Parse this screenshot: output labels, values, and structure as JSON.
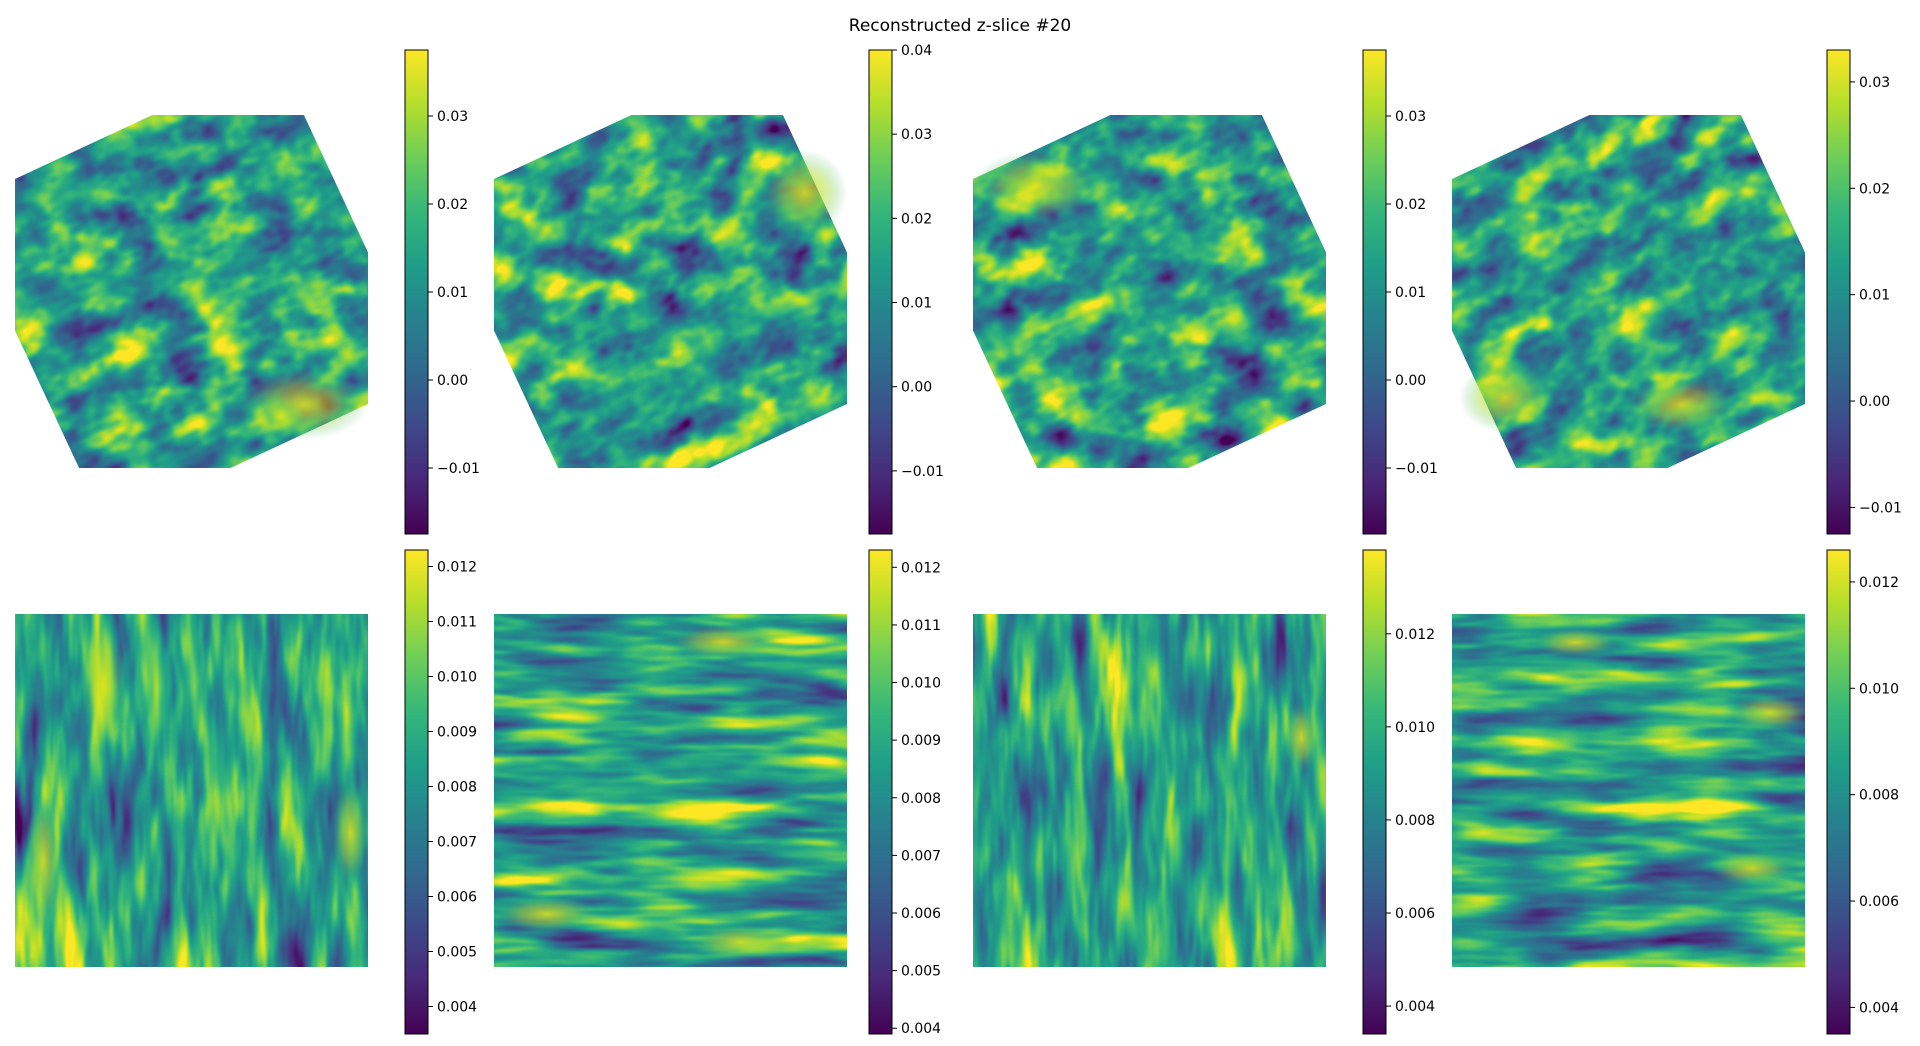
{
  "title": "Reconstructed z-slice #20",
  "colormap": "viridis",
  "chart_data": [
    {
      "type": "heatmap",
      "row": 0,
      "col": 0,
      "axes": "off",
      "colorbar": {
        "range": [
          -0.0175,
          0.0375
        ],
        "ticks": [
          -0.01,
          0.0,
          0.01,
          0.02,
          0.03
        ],
        "tick_labels": [
          "−0.01",
          "0.00",
          "0.01",
          "0.02",
          "0.03"
        ]
      },
      "pattern": "diagonal streaks, bright (yellow) blob at bottom-right"
    },
    {
      "type": "heatmap",
      "row": 0,
      "col": 1,
      "axes": "off",
      "colorbar": {
        "range": [
          -0.0175,
          0.04
        ],
        "ticks": [
          -0.01,
          0.0,
          0.01,
          0.02,
          0.03,
          0.04
        ],
        "tick_labels": [
          "−0.01",
          "0.00",
          "0.01",
          "0.02",
          "0.03",
          "0.04"
        ]
      },
      "pattern": "diagonal streaks, bright blob at top-right"
    },
    {
      "type": "heatmap",
      "row": 0,
      "col": 2,
      "axes": "off",
      "colorbar": {
        "range": [
          -0.0175,
          0.0375
        ],
        "ticks": [
          -0.01,
          0.0,
          0.01,
          0.02,
          0.03
        ],
        "tick_labels": [
          "−0.01",
          "0.00",
          "0.01",
          "0.02",
          "0.03"
        ]
      },
      "pattern": "diagonal streaks, bright blob at top-left"
    },
    {
      "type": "heatmap",
      "row": 0,
      "col": 3,
      "axes": "off",
      "colorbar": {
        "range": [
          -0.0125,
          0.033
        ],
        "ticks": [
          -0.01,
          0.0,
          0.01,
          0.02,
          0.03
        ],
        "tick_labels": [
          "−0.01",
          "0.00",
          "0.01",
          "0.02",
          "0.03"
        ]
      },
      "pattern": "diagonal streaks, bright blobs at bottom-left"
    },
    {
      "type": "heatmap",
      "row": 1,
      "col": 0,
      "axes": "off",
      "colorbar": {
        "range": [
          0.0035,
          0.0123
        ],
        "ticks": [
          0.004,
          0.005,
          0.006,
          0.007,
          0.008,
          0.009,
          0.01,
          0.011,
          0.012
        ],
        "tick_labels": [
          "0.004",
          "0.005",
          "0.006",
          "0.007",
          "0.008",
          "0.009",
          "0.010",
          "0.011",
          "0.012"
        ]
      },
      "pattern": "vertical streaks, bright bands near left and right edges"
    },
    {
      "type": "heatmap",
      "row": 1,
      "col": 1,
      "axes": "off",
      "colorbar": {
        "range": [
          0.0039,
          0.0123
        ],
        "ticks": [
          0.004,
          0.005,
          0.006,
          0.007,
          0.008,
          0.009,
          0.01,
          0.011,
          0.012
        ],
        "tick_labels": [
          "0.004",
          "0.005",
          "0.006",
          "0.007",
          "0.008",
          "0.009",
          "0.010",
          "0.011",
          "0.012"
        ]
      },
      "pattern": "horizontal streaks, bright bands near top and bottom"
    },
    {
      "type": "heatmap",
      "row": 1,
      "col": 2,
      "axes": "off",
      "colorbar": {
        "range": [
          0.0034,
          0.0138
        ],
        "ticks": [
          0.004,
          0.006,
          0.008,
          0.01,
          0.012
        ],
        "tick_labels": [
          "0.004",
          "0.006",
          "0.008",
          "0.010",
          "0.012"
        ]
      },
      "pattern": "vertical streaks, bright spot at right edge"
    },
    {
      "type": "heatmap",
      "row": 1,
      "col": 3,
      "axes": "off",
      "colorbar": {
        "range": [
          0.0035,
          0.0126
        ],
        "ticks": [
          0.004,
          0.006,
          0.008,
          0.01,
          0.012
        ],
        "tick_labels": [
          "0.004",
          "0.006",
          "0.008",
          "0.010",
          "0.012"
        ]
      },
      "pattern": "horizontal streaks, bright bands at right"
    }
  ]
}
